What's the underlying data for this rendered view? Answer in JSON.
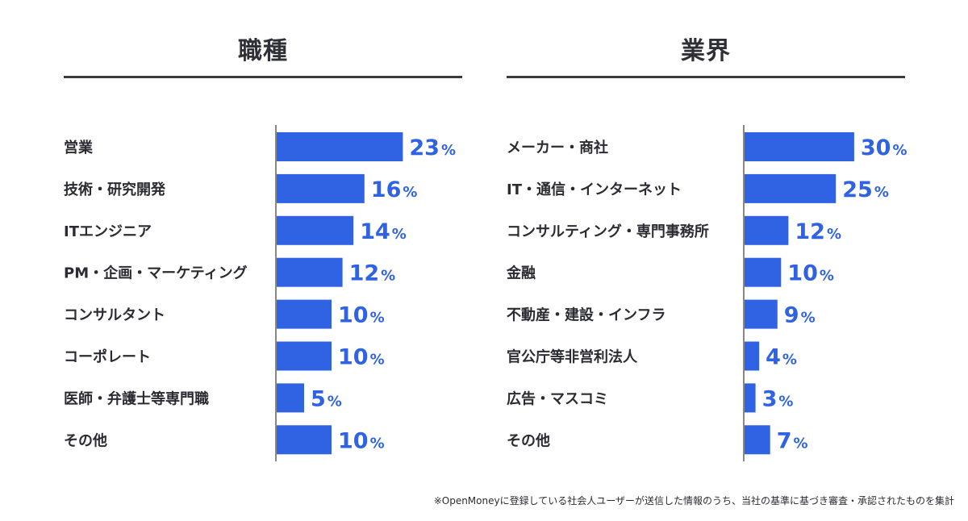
{
  "footnote": "※OpenMoneyに登録している社会人ユーザーが送信した情報のうち、当社の基準に基づき審査・承認されたものを集計",
  "colors": {
    "bar": "#2f63e3",
    "axis": "#888888",
    "text": "#2b2b33"
  },
  "chart_data": [
    {
      "type": "bar",
      "orientation": "horizontal",
      "title": "職種",
      "unit": "%",
      "categories": [
        "営業",
        "技術・研究開発",
        "ITエンジニア",
        "PM・企画・マーケティング",
        "コンサルタント",
        "コーポレート",
        "医師・弁護士等専門職",
        "その他"
      ],
      "values": [
        23,
        16,
        14,
        12,
        10,
        10,
        5,
        10
      ],
      "xlim": [
        0,
        30
      ]
    },
    {
      "type": "bar",
      "orientation": "horizontal",
      "title": "業界",
      "unit": "%",
      "categories": [
        "メーカー・商社",
        "IT・通信・インターネット",
        "コンサルティング・専門事務所",
        "金融",
        "不動産・建設・インフラ",
        "官公庁等非営利法人",
        "広告・マスコミ",
        "その他"
      ],
      "values": [
        30,
        25,
        12,
        10,
        9,
        4,
        3,
        7
      ],
      "xlim": [
        0,
        30
      ]
    }
  ]
}
